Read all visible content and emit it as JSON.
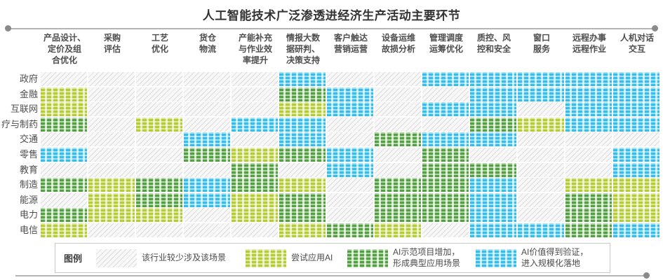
{
  "chart_data": {
    "type": "heatmap",
    "title": "人工智能技术广泛渗透进经济生产活动主要环节",
    "columns": [
      "产品设计、\n定价及组\n合优化",
      "采购\n评估",
      "工艺\n优化",
      "货仓\n物流",
      "产能补充\n与作业效\n率提升",
      "情报大数\n据研判、\n决策支持",
      "客户触达\n营销运营",
      "设备运维\n故损分析",
      "管理调度\n运筹优化",
      "质控、风\n控和安全",
      "窗口\n服务",
      "远程办事\n远程作业",
      "人机对话\n交互"
    ],
    "rows": [
      "政府",
      "金融",
      "互联网",
      "疗与制药",
      "交通",
      "零售",
      "教育",
      "制造",
      "能源",
      "电力",
      "电信"
    ],
    "legend_title": "图例",
    "levels": [
      {
        "key": "none",
        "label": "该行业较少涉及该场景",
        "color": "#dcdcdc",
        "light": "#f8f8f8"
      },
      {
        "key": "trial",
        "label": "尝试应用AI",
        "color": "#b5cc34",
        "light": "#e7efc0"
      },
      {
        "key": "demo",
        "label": "AI示范项目增加，形成典型应用场景",
        "color": "#53a043",
        "light": "#d6e8cb"
      },
      {
        "key": "scale",
        "label": "AI价值得到验证，进入规模化落地",
        "color": "#35bdec",
        "light": "#c2ebfa"
      }
    ],
    "matrix": [
      [
        0,
        0,
        0,
        0,
        0,
        3,
        0,
        0,
        3,
        3,
        3,
        3,
        3
      ],
      [
        1,
        0,
        0,
        0,
        0,
        2,
        3,
        0,
        0,
        3,
        3,
        3,
        3
      ],
      [
        1,
        0,
        0,
        0,
        0,
        1,
        3,
        0,
        3,
        3,
        0,
        3,
        3
      ],
      [
        2,
        0,
        1,
        0,
        3,
        3,
        0,
        0,
        0,
        2,
        1,
        3,
        3
      ],
      [
        0,
        0,
        0,
        3,
        0,
        3,
        0,
        2,
        3,
        3,
        0,
        0,
        0
      ],
      [
        3,
        0,
        0,
        2,
        1,
        2,
        3,
        0,
        2,
        0,
        0,
        0,
        3
      ],
      [
        0,
        0,
        0,
        0,
        2,
        0,
        3,
        0,
        2,
        2,
        0,
        0,
        3
      ],
      [
        2,
        1,
        2,
        3,
        2,
        1,
        0,
        2,
        2,
        3,
        0,
        1,
        1
      ],
      [
        0,
        1,
        2,
        3,
        1,
        2,
        0,
        2,
        2,
        3,
        0,
        2,
        1
      ],
      [
        2,
        1,
        1,
        0,
        1,
        2,
        0,
        2,
        2,
        3,
        0,
        2,
        1
      ],
      [
        1,
        0,
        0,
        0,
        0,
        1,
        2,
        1,
        0,
        3,
        3,
        2,
        3
      ]
    ]
  }
}
